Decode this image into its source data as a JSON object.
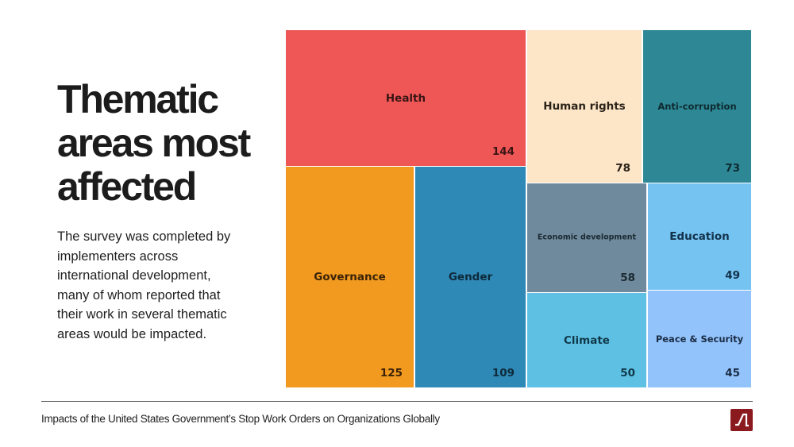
{
  "slide": {
    "title": "Thematic areas most affected",
    "description": "The survey was completed by implementers across international development, many of whom reported that their work in several thematic areas would be impacted."
  },
  "footer": {
    "text": "Impacts of the United States Government’s Stop Work Orders on Organizations Globally",
    "logo_icon": "logo-icon"
  },
  "chart_data": {
    "type": "treemap",
    "title": "Thematic areas most affected",
    "items": [
      {
        "label": "Health",
        "value": 144,
        "color": "#ef5757"
      },
      {
        "label": "Governance",
        "value": 125,
        "color": "#f29a1f"
      },
      {
        "label": "Gender",
        "value": 109,
        "color": "#2f89b7"
      },
      {
        "label": "Human rights",
        "value": 78,
        "color": "#fde5c7"
      },
      {
        "label": "Anti-corruption",
        "value": 73,
        "color": "#2e8795"
      },
      {
        "label": "Economic development",
        "value": 58,
        "color": "#6f8a9c"
      },
      {
        "label": "Education",
        "value": 49,
        "color": "#75c3f1"
      },
      {
        "label": "Climate",
        "value": 50,
        "color": "#5ec1e4"
      },
      {
        "label": "Peace & Security",
        "value": 45,
        "color": "#93c3fb"
      }
    ]
  }
}
